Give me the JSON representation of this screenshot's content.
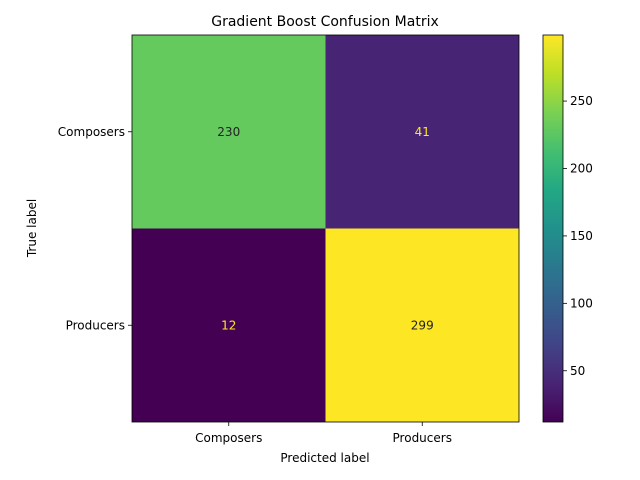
{
  "chart_data": {
    "type": "heatmap",
    "title": "Gradient Boost Confusion Matrix",
    "xlabel": "Predicted label",
    "ylabel": "True label",
    "x_categories": [
      "Composers",
      "Producers"
    ],
    "y_categories": [
      "Composers",
      "Producers"
    ],
    "values": [
      [
        230,
        41
      ],
      [
        12,
        299
      ]
    ],
    "colormap": "viridis",
    "colorbar": {
      "range": [
        12,
        299
      ],
      "ticks": [
        50,
        100,
        150,
        200,
        250
      ]
    }
  }
}
